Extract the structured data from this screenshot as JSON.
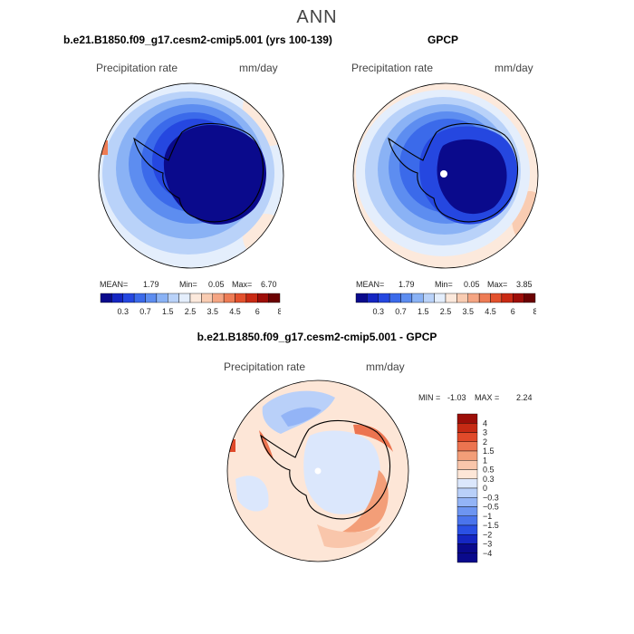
{
  "main_title": "ANN",
  "colors": {
    "sequential": [
      "#0a0a8c",
      "#1526c2",
      "#2547e0",
      "#3b6aea",
      "#5d8df0",
      "#8ab2f5",
      "#b9d2f9",
      "#e4eefc",
      "#fce9dc",
      "#f9ccb2",
      "#f5a583",
      "#ee7c55",
      "#e3512d",
      "#c92a14",
      "#9e0e08",
      "#6b0202"
    ],
    "diverging": [
      "#0a0a8c",
      "#1526c2",
      "#2a50e4",
      "#4a74ec",
      "#6d95f1",
      "#93b4f6",
      "#b9d0f9",
      "#dbe7fc",
      "#fde6d7",
      "#f9c6ab",
      "#f39e78",
      "#ec7450",
      "#e04a2a",
      "#c62a14",
      "#9c0e08"
    ]
  },
  "panels": [
    {
      "title": "b.e21.B1850.f09_g17.cesm2-cmip5.001 (yrs 100-139)",
      "variable": "Precipitation rate",
      "units": "mm/day",
      "stats": {
        "mean_label": "MEAN=",
        "mean": "1.79",
        "min_label": "Min=",
        "min": "0.05",
        "max_label": "Max=",
        "max": "6.70"
      },
      "colorbar_ticks": [
        "0.3",
        "0.7",
        "1.5",
        "2.5",
        "3.5",
        "4.5",
        "6",
        "8"
      ]
    },
    {
      "title": "GPCP",
      "variable": "Precipitation rate",
      "units": "mm/day",
      "stats": {
        "mean_label": "MEAN=",
        "mean": "1.79",
        "min_label": "Min=",
        "min": "0.05",
        "max_label": "Max=",
        "max": "3.85"
      },
      "colorbar_ticks": [
        "0.3",
        "0.7",
        "1.5",
        "2.5",
        "3.5",
        "4.5",
        "6",
        "8"
      ]
    },
    {
      "title": "b.e21.B1850.f09_g17.cesm2-cmip5.001 - GPCP",
      "variable": "Precipitation rate",
      "units": "mm/day",
      "stats": {
        "min_label": "MIN =",
        "min": "-1.03",
        "max_label": "MAX =",
        "max": "2.24"
      },
      "colorbar_ticks": [
        "4",
        "3",
        "2",
        "1.5",
        "1",
        "0.5",
        "0.3",
        "0",
        "−0.3",
        "−0.5",
        "−1",
        "−1.5",
        "−2",
        "−3",
        "−4"
      ]
    }
  ],
  "chart_data": [
    {
      "type": "heatmap",
      "projection": "south-polar-stereographic",
      "title": "b.e21.B1850.f09_g17.cesm2-cmip5.001 (yrs 100-139)",
      "variable": "Precipitation rate",
      "units": "mm/day",
      "mean": 1.79,
      "min": 0.05,
      "max": 6.7,
      "colorbar_levels": [
        0.3,
        0.7,
        1.5,
        2.5,
        3.5,
        4.5,
        6,
        8
      ]
    },
    {
      "type": "heatmap",
      "projection": "south-polar-stereographic",
      "title": "GPCP",
      "variable": "Precipitation rate",
      "units": "mm/day",
      "mean": 1.79,
      "min": 0.05,
      "max": 3.85,
      "colorbar_levels": [
        0.3,
        0.7,
        1.5,
        2.5,
        3.5,
        4.5,
        6,
        8
      ]
    },
    {
      "type": "heatmap",
      "projection": "south-polar-stereographic",
      "title": "b.e21.B1850.f09_g17.cesm2-cmip5.001 - GPCP",
      "variable": "Precipitation rate",
      "units": "mm/day",
      "min": -1.03,
      "max": 2.24,
      "colorbar_levels": [
        -4,
        -3,
        -2,
        -1.5,
        -1,
        -0.5,
        -0.3,
        0,
        0.3,
        0.5,
        1,
        1.5,
        2,
        3,
        4
      ]
    }
  ]
}
